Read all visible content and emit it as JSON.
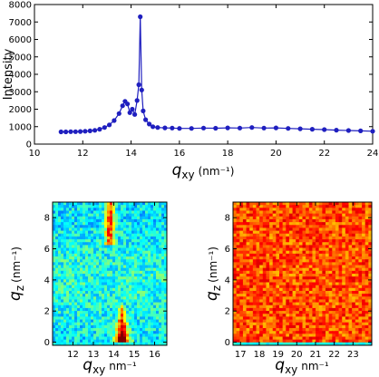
{
  "chart_data": [
    {
      "type": "line",
      "panel": "top",
      "title": "",
      "ylabel": "Intensity",
      "xlabel": {
        "symbol": "q",
        "subscript": "xy",
        "unit": "(nm⁻¹)"
      },
      "xlim": [
        10,
        24
      ],
      "ylim": [
        0,
        8000
      ],
      "xticks": [
        "10",
        "12",
        "14",
        "16",
        "18",
        "20",
        "22",
        "24"
      ],
      "yticks": [
        "0",
        "1000",
        "2000",
        "3000",
        "4000",
        "5000",
        "6000",
        "7000",
        "8000"
      ],
      "grid": false,
      "series_color": "#1f1fbf",
      "series": [
        {
          "x": [
            11.1,
            11.3,
            11.5,
            11.7,
            11.9,
            12.1,
            12.3,
            12.5,
            12.7,
            12.9,
            13.1,
            13.3,
            13.5,
            13.65,
            13.75,
            13.85,
            13.95,
            14.05,
            14.15,
            14.25,
            14.32,
            14.38,
            14.44,
            14.5,
            14.6,
            14.75,
            14.9,
            15.1,
            15.4,
            15.7,
            16.0,
            16.5,
            17.0,
            17.5,
            18.0,
            18.5,
            19.0,
            19.5,
            20.0,
            20.5,
            21.0,
            21.5,
            22.0,
            22.5,
            23.0,
            23.5,
            24.0
          ],
          "y": [
            700,
            700,
            710,
            710,
            720,
            740,
            760,
            790,
            850,
            950,
            1100,
            1350,
            1750,
            2200,
            2450,
            2300,
            1800,
            2000,
            1700,
            2500,
            3400,
            7300,
            3100,
            1900,
            1400,
            1150,
            1000,
            950,
            930,
            920,
            900,
            900,
            920,
            910,
            930,
            920,
            950,
            920,
            930,
            900,
            880,
            850,
            830,
            800,
            780,
            760,
            740
          ]
        }
      ]
    },
    {
      "type": "heatmap",
      "panel": "bottom-left",
      "xlabel": {
        "symbol": "q",
        "subscript": "xy",
        "unit": "nm⁻¹"
      },
      "ylabel": {
        "symbol": "q",
        "subscript": "z",
        "unit": "(nm⁻¹)"
      },
      "xlim": [
        11,
        16.6
      ],
      "ylim": [
        -0.2,
        9
      ],
      "xticks": [
        "12",
        "13",
        "14",
        "15",
        "16"
      ],
      "yticks": [
        "0",
        "2",
        "4",
        "6",
        "8"
      ],
      "colormap": "jet",
      "features": [
        {
          "kind": "streak",
          "q_xy": 13.8,
          "q_z_range": [
            6.3,
            9
          ],
          "intensity": "high"
        },
        {
          "kind": "peak",
          "q_xy": 14.4,
          "q_z_range": [
            0,
            2.3
          ],
          "intensity": "max"
        }
      ],
      "background_level": 0.35
    },
    {
      "type": "heatmap",
      "panel": "bottom-right",
      "xlabel": {
        "symbol": "q",
        "subscript": "xy",
        "unit": "nm⁻¹"
      },
      "ylabel": {
        "symbol": "q",
        "subscript": "z",
        "unit": "(nm⁻¹)"
      },
      "xlim": [
        16.6,
        24
      ],
      "ylim": [
        -0.2,
        9
      ],
      "xticks": [
        "17",
        "18",
        "19",
        "20",
        "21",
        "22",
        "23"
      ],
      "yticks": [
        "0",
        "2",
        "4",
        "6",
        "8"
      ],
      "colormap": "jet",
      "background_level": 0.8
    }
  ]
}
